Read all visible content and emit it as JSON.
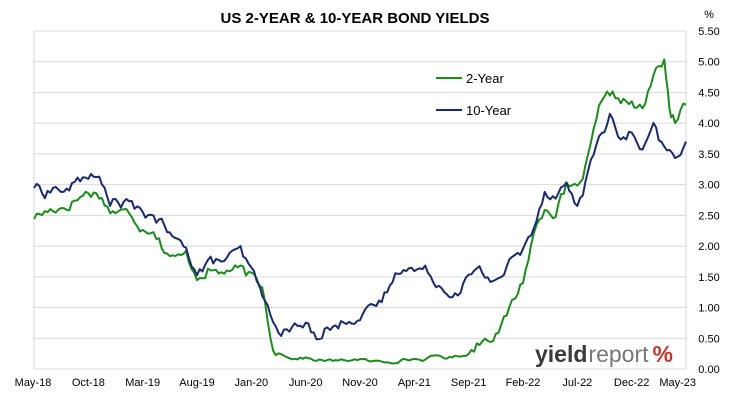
{
  "chart_data": {
    "type": "line",
    "title": "US 2-YEAR & 10-YEAR BOND YIELDS",
    "ylabel": "%",
    "ylim": [
      0,
      5.5
    ],
    "y_ticks": [
      "0.00",
      "0.50",
      "1.00",
      "1.50",
      "2.00",
      "2.50",
      "3.00",
      "3.50",
      "4.00",
      "4.50",
      "5.00",
      "5.50"
    ],
    "x_range": [
      "2018-05",
      "2023-05"
    ],
    "x_ticks": [
      "May-18",
      "Oct-18",
      "Mar-19",
      "Aug-19",
      "Jan-20",
      "Jun-20",
      "Nov-20",
      "Apr-21",
      "Sep-21",
      "Feb-22",
      "Jul-22",
      "Dec-22",
      "May-23"
    ],
    "grid": "horizontal",
    "legend": "top-center",
    "series": [
      {
        "name": "2-Year",
        "color": "#1e8a1e",
        "points": [
          [
            "2018-05",
            2.48
          ],
          [
            "2018-06",
            2.55
          ],
          [
            "2018-07",
            2.62
          ],
          [
            "2018-08",
            2.65
          ],
          [
            "2018-09",
            2.78
          ],
          [
            "2018-10",
            2.88
          ],
          [
            "2018-11",
            2.85
          ],
          [
            "2018-12",
            2.58
          ],
          [
            "2019-01",
            2.55
          ],
          [
            "2019-02",
            2.52
          ],
          [
            "2019-03",
            2.3
          ],
          [
            "2019-04",
            2.3
          ],
          [
            "2019-05",
            1.95
          ],
          [
            "2019-06",
            1.78
          ],
          [
            "2019-07",
            1.85
          ],
          [
            "2019-08",
            1.52
          ],
          [
            "2019-09",
            1.62
          ],
          [
            "2019-10",
            1.55
          ],
          [
            "2019-11",
            1.62
          ],
          [
            "2019-12",
            1.6
          ],
          [
            "2020-01",
            1.48
          ],
          [
            "2020-02",
            1.32
          ],
          [
            "2020-03",
            0.35
          ],
          [
            "2020-04",
            0.22
          ],
          [
            "2020-05",
            0.17
          ],
          [
            "2020-06",
            0.18
          ],
          [
            "2020-07",
            0.14
          ],
          [
            "2020-08",
            0.14
          ],
          [
            "2020-09",
            0.13
          ],
          [
            "2020-10",
            0.15
          ],
          [
            "2020-11",
            0.16
          ],
          [
            "2020-12",
            0.12
          ],
          [
            "2021-01",
            0.12
          ],
          [
            "2021-02",
            0.12
          ],
          [
            "2021-03",
            0.15
          ],
          [
            "2021-04",
            0.16
          ],
          [
            "2021-05",
            0.15
          ],
          [
            "2021-06",
            0.22
          ],
          [
            "2021-07",
            0.18
          ],
          [
            "2021-08",
            0.21
          ],
          [
            "2021-09",
            0.25
          ],
          [
            "2021-10",
            0.45
          ],
          [
            "2021-11",
            0.55
          ],
          [
            "2021-12",
            0.68
          ],
          [
            "2022-01",
            1.05
          ],
          [
            "2022-02",
            1.45
          ],
          [
            "2022-03",
            2.2
          ],
          [
            "2022-04",
            2.65
          ],
          [
            "2022-05",
            2.55
          ],
          [
            "2022-06",
            2.95
          ],
          [
            "2022-07",
            2.9
          ],
          [
            "2022-08",
            3.4
          ],
          [
            "2022-09",
            4.2
          ],
          [
            "2022-10",
            4.45
          ],
          [
            "2022-11",
            4.4
          ],
          [
            "2022-12",
            4.3
          ],
          [
            "2023-01",
            4.2
          ],
          [
            "2023-02",
            4.75
          ],
          [
            "2023-03",
            5.05
          ],
          [
            "2023-03-20",
            4.05
          ],
          [
            "2023-04",
            4.05
          ],
          [
            "2023-05",
            4.3
          ]
        ]
      },
      {
        "name": "10-Year",
        "color": "#1a2a6c",
        "points": [
          [
            "2018-05",
            2.98
          ],
          [
            "2018-06",
            2.88
          ],
          [
            "2018-07",
            2.95
          ],
          [
            "2018-08",
            2.88
          ],
          [
            "2018-09",
            3.05
          ],
          [
            "2018-10",
            3.18
          ],
          [
            "2018-11",
            3.05
          ],
          [
            "2018-12",
            2.75
          ],
          [
            "2019-01",
            2.7
          ],
          [
            "2019-02",
            2.68
          ],
          [
            "2019-03",
            2.48
          ],
          [
            "2019-04",
            2.52
          ],
          [
            "2019-05",
            2.3
          ],
          [
            "2019-06",
            2.05
          ],
          [
            "2019-07",
            2.02
          ],
          [
            "2019-08",
            1.55
          ],
          [
            "2019-09",
            1.72
          ],
          [
            "2019-10",
            1.75
          ],
          [
            "2019-11",
            1.82
          ],
          [
            "2019-12",
            1.9
          ],
          [
            "2020-01",
            1.58
          ],
          [
            "2020-02",
            1.25
          ],
          [
            "2020-03",
            0.7
          ],
          [
            "2020-04",
            0.62
          ],
          [
            "2020-05",
            0.68
          ],
          [
            "2020-06",
            0.7
          ],
          [
            "2020-07",
            0.55
          ],
          [
            "2020-08",
            0.7
          ],
          [
            "2020-09",
            0.68
          ],
          [
            "2020-10",
            0.85
          ],
          [
            "2020-11",
            0.85
          ],
          [
            "2020-12",
            0.93
          ],
          [
            "2021-01",
            1.1
          ],
          [
            "2021-02",
            1.45
          ],
          [
            "2021-03",
            1.72
          ],
          [
            "2021-04",
            1.62
          ],
          [
            "2021-05",
            1.6
          ],
          [
            "2021-06",
            1.45
          ],
          [
            "2021-07",
            1.25
          ],
          [
            "2021-08",
            1.3
          ],
          [
            "2021-09",
            1.5
          ],
          [
            "2021-10",
            1.58
          ],
          [
            "2021-11",
            1.45
          ],
          [
            "2021-12",
            1.52
          ],
          [
            "2022-01",
            1.78
          ],
          [
            "2022-02",
            1.92
          ],
          [
            "2022-03",
            2.35
          ],
          [
            "2022-04",
            2.9
          ],
          [
            "2022-05",
            2.85
          ],
          [
            "2022-06",
            3.0
          ],
          [
            "2022-07",
            2.65
          ],
          [
            "2022-08",
            3.15
          ],
          [
            "2022-09",
            3.8
          ],
          [
            "2022-10",
            4.1
          ],
          [
            "2022-11",
            3.7
          ],
          [
            "2022-12",
            3.85
          ],
          [
            "2023-01",
            3.5
          ],
          [
            "2023-02",
            3.9
          ],
          [
            "2023-03",
            3.55
          ],
          [
            "2023-04",
            3.45
          ],
          [
            "2023-05",
            3.7
          ]
        ]
      }
    ]
  },
  "watermark": {
    "part1": "yield",
    "part2": "report",
    "part3": "%"
  }
}
